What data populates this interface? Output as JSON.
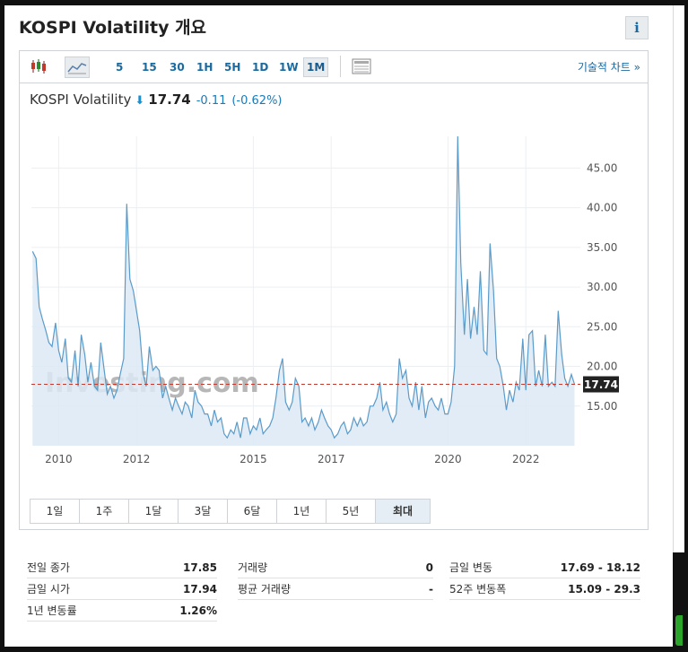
{
  "header": {
    "title": "KOSPI Volatility 개요",
    "info_label": "i"
  },
  "toolbar": {
    "intervals": [
      "5",
      "15",
      "30",
      "1H",
      "5H",
      "1D",
      "1W",
      "1M"
    ],
    "active_interval": "1M",
    "tech_chart_link": "기술적 차트 »"
  },
  "quote": {
    "name": "KOSPI Volatility",
    "direction_icon": "arrow-down-icon",
    "price": "17.74",
    "change": "-0.11",
    "change_pct": "(-0.62%)"
  },
  "watermark": "Investing.com",
  "ranges": [
    "1일",
    "1주",
    "1달",
    "3달",
    "6달",
    "1년",
    "5년",
    "최대"
  ],
  "active_range": "최대",
  "colors": {
    "line": "#5b9bc9",
    "area": "#dce9f4",
    "current_line": "#c0392b",
    "accent": "#1a6aa0"
  },
  "chart_data": {
    "type": "area",
    "title": "",
    "xlabel": "",
    "ylabel": "",
    "x_ticks": [
      "2010",
      "2012",
      "2015",
      "2017",
      "2020",
      "2022"
    ],
    "y_ticks": [
      "15.00",
      "20.00",
      "25.00",
      "30.00",
      "35.00",
      "40.00",
      "45.00"
    ],
    "ylim": [
      10,
      49
    ],
    "xlim": [
      2009.3,
      2023.4
    ],
    "y_axis_side": "right",
    "grid": true,
    "current_value": 17.74,
    "current_label": "17.74",
    "series": [
      {
        "points": [
          [
            2009.33,
            34.5
          ],
          [
            2009.42,
            33.6
          ],
          [
            2009.5,
            27.5
          ],
          [
            2009.58,
            26.0
          ],
          [
            2009.67,
            24.5
          ],
          [
            2009.75,
            23.0
          ],
          [
            2009.83,
            22.5
          ],
          [
            2009.92,
            25.5
          ],
          [
            2010.0,
            22.0
          ],
          [
            2010.08,
            20.5
          ],
          [
            2010.17,
            23.5
          ],
          [
            2010.25,
            18.5
          ],
          [
            2010.33,
            18.0
          ],
          [
            2010.42,
            22.0
          ],
          [
            2010.5,
            17.5
          ],
          [
            2010.58,
            24.0
          ],
          [
            2010.67,
            21.5
          ],
          [
            2010.75,
            18.0
          ],
          [
            2010.83,
            20.5
          ],
          [
            2010.92,
            17.5
          ],
          [
            2011.0,
            17.0
          ],
          [
            2011.08,
            23.0
          ],
          [
            2011.17,
            19.5
          ],
          [
            2011.25,
            16.5
          ],
          [
            2011.33,
            17.5
          ],
          [
            2011.42,
            16.0
          ],
          [
            2011.5,
            17.0
          ],
          [
            2011.58,
            19.0
          ],
          [
            2011.67,
            21.0
          ],
          [
            2011.75,
            40.5
          ],
          [
            2011.83,
            31.0
          ],
          [
            2011.92,
            29.5
          ],
          [
            2012.0,
            27.0
          ],
          [
            2012.08,
            24.5
          ],
          [
            2012.17,
            19.0
          ],
          [
            2012.25,
            17.5
          ],
          [
            2012.33,
            22.5
          ],
          [
            2012.42,
            19.5
          ],
          [
            2012.5,
            20.0
          ],
          [
            2012.58,
            19.5
          ],
          [
            2012.67,
            16.0
          ],
          [
            2012.75,
            17.5
          ],
          [
            2012.83,
            16.0
          ],
          [
            2012.92,
            14.5
          ],
          [
            2013.0,
            16.0
          ],
          [
            2013.08,
            15.0
          ],
          [
            2013.17,
            14.0
          ],
          [
            2013.25,
            15.5
          ],
          [
            2013.33,
            15.0
          ],
          [
            2013.42,
            13.5
          ],
          [
            2013.5,
            17.0
          ],
          [
            2013.58,
            15.5
          ],
          [
            2013.67,
            15.0
          ],
          [
            2013.75,
            14.0
          ],
          [
            2013.83,
            14.0
          ],
          [
            2013.92,
            12.5
          ],
          [
            2014.0,
            14.5
          ],
          [
            2014.08,
            13.0
          ],
          [
            2014.17,
            13.5
          ],
          [
            2014.25,
            11.5
          ],
          [
            2014.33,
            11.0
          ],
          [
            2014.42,
            12.0
          ],
          [
            2014.5,
            11.5
          ],
          [
            2014.58,
            13.0
          ],
          [
            2014.67,
            11.0
          ],
          [
            2014.75,
            13.5
          ],
          [
            2014.83,
            13.5
          ],
          [
            2014.92,
            11.5
          ],
          [
            2015.0,
            12.5
          ],
          [
            2015.08,
            12.0
          ],
          [
            2015.17,
            13.5
          ],
          [
            2015.25,
            11.5
          ],
          [
            2015.33,
            12.0
          ],
          [
            2015.42,
            12.5
          ],
          [
            2015.5,
            13.5
          ],
          [
            2015.58,
            16.0
          ],
          [
            2015.67,
            19.5
          ],
          [
            2015.75,
            21.0
          ],
          [
            2015.83,
            15.5
          ],
          [
            2015.92,
            14.5
          ],
          [
            2016.0,
            15.5
          ],
          [
            2016.08,
            18.5
          ],
          [
            2016.17,
            17.5
          ],
          [
            2016.25,
            13.0
          ],
          [
            2016.33,
            13.5
          ],
          [
            2016.42,
            12.5
          ],
          [
            2016.5,
            13.5
          ],
          [
            2016.58,
            12.0
          ],
          [
            2016.67,
            13.0
          ],
          [
            2016.75,
            14.5
          ],
          [
            2016.83,
            13.5
          ],
          [
            2016.92,
            12.5
          ],
          [
            2017.0,
            12.0
          ],
          [
            2017.08,
            11.0
          ],
          [
            2017.17,
            11.5
          ],
          [
            2017.25,
            12.5
          ],
          [
            2017.33,
            13.0
          ],
          [
            2017.42,
            11.5
          ],
          [
            2017.5,
            12.0
          ],
          [
            2017.58,
            13.5
          ],
          [
            2017.67,
            12.5
          ],
          [
            2017.75,
            13.5
          ],
          [
            2017.83,
            12.5
          ],
          [
            2017.92,
            13.0
          ],
          [
            2018.0,
            15.0
          ],
          [
            2018.08,
            15.0
          ],
          [
            2018.17,
            16.0
          ],
          [
            2018.25,
            18.0
          ],
          [
            2018.33,
            14.5
          ],
          [
            2018.42,
            15.5
          ],
          [
            2018.5,
            14.0
          ],
          [
            2018.58,
            13.0
          ],
          [
            2018.67,
            14.0
          ],
          [
            2018.75,
            21.0
          ],
          [
            2018.83,
            18.5
          ],
          [
            2018.92,
            19.5
          ],
          [
            2019.0,
            16.0
          ],
          [
            2019.08,
            15.0
          ],
          [
            2019.17,
            18.0
          ],
          [
            2019.25,
            14.5
          ],
          [
            2019.33,
            17.5
          ],
          [
            2019.42,
            13.5
          ],
          [
            2019.5,
            15.5
          ],
          [
            2019.58,
            16.0
          ],
          [
            2019.67,
            15.0
          ],
          [
            2019.75,
            14.5
          ],
          [
            2019.83,
            16.0
          ],
          [
            2019.92,
            14.0
          ],
          [
            2020.0,
            14.0
          ],
          [
            2020.08,
            15.5
          ],
          [
            2020.17,
            20.0
          ],
          [
            2020.25,
            49.0
          ],
          [
            2020.33,
            33.0
          ],
          [
            2020.42,
            24.0
          ],
          [
            2020.5,
            31.0
          ],
          [
            2020.58,
            23.5
          ],
          [
            2020.67,
            27.5
          ],
          [
            2020.75,
            24.0
          ],
          [
            2020.83,
            32.0
          ],
          [
            2020.92,
            22.0
          ],
          [
            2021.0,
            21.5
          ],
          [
            2021.08,
            35.5
          ],
          [
            2021.17,
            29.5
          ],
          [
            2021.25,
            21.0
          ],
          [
            2021.33,
            20.0
          ],
          [
            2021.42,
            17.5
          ],
          [
            2021.5,
            14.5
          ],
          [
            2021.58,
            17.0
          ],
          [
            2021.67,
            15.5
          ],
          [
            2021.75,
            18.0
          ],
          [
            2021.83,
            17.0
          ],
          [
            2021.92,
            23.5
          ],
          [
            2022.0,
            17.0
          ],
          [
            2022.08,
            24.0
          ],
          [
            2022.17,
            24.5
          ],
          [
            2022.25,
            17.5
          ],
          [
            2022.33,
            19.5
          ],
          [
            2022.42,
            17.5
          ],
          [
            2022.5,
            24.0
          ],
          [
            2022.58,
            17.5
          ],
          [
            2022.67,
            18.0
          ],
          [
            2022.75,
            17.5
          ],
          [
            2022.83,
            27.0
          ],
          [
            2022.92,
            21.5
          ],
          [
            2023.0,
            18.5
          ],
          [
            2023.08,
            17.5
          ],
          [
            2023.17,
            19.0
          ],
          [
            2023.25,
            17.74
          ]
        ]
      }
    ]
  },
  "stats": {
    "prev_close_label": "전일 종가",
    "prev_close": "17.85",
    "open_label": "금일 시가",
    "open": "17.94",
    "yr_change_label": "1년 변동률",
    "yr_change": "1.26%",
    "volume_label": "거래량",
    "volume": "0",
    "avg_volume_label": "평균 거래량",
    "avg_volume": "-",
    "day_range_label": "금일 변동",
    "day_range": "17.69 - 18.12",
    "wk52_range_label": "52주 변동폭",
    "wk52_range": "15.09 - 29.3"
  }
}
